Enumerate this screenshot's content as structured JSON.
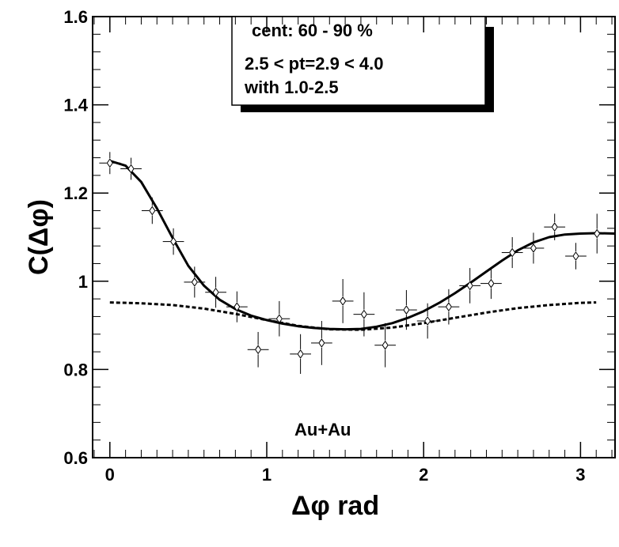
{
  "chart_data": {
    "type": "scatter",
    "title": "",
    "xlabel": "Δφ rad",
    "ylabel": "C(Δφ)",
    "xlim": [
      -0.11,
      3.22
    ],
    "ylim": [
      0.6,
      1.6
    ],
    "x_ticks": [
      "0",
      "1",
      "2",
      "3"
    ],
    "y_ticks": [
      "0.6",
      "0.8",
      "1",
      "1.2",
      "1.4",
      "1.6"
    ],
    "grid": false,
    "annotations": {
      "line1": "cent:  60 - 90 %",
      "line2": "2.5 < pt=2.9 < 4.0",
      "line3": "with 1.0-2.5",
      "system": "Au+Au"
    },
    "series": [
      {
        "style": "diamond-markers-with-error-bars",
        "x": [
          0.0,
          0.135,
          0.27,
          0.405,
          0.54,
          0.675,
          0.81,
          0.945,
          1.08,
          1.215,
          1.35,
          1.485,
          1.62,
          1.755,
          1.89,
          2.025,
          2.16,
          2.295,
          2.43,
          2.565,
          2.7,
          2.835,
          2.97,
          3.105
        ],
        "y": [
          1.268,
          1.255,
          1.16,
          1.09,
          0.998,
          0.975,
          0.942,
          0.845,
          0.915,
          0.835,
          0.86,
          0.955,
          0.925,
          0.855,
          0.935,
          0.91,
          0.942,
          0.99,
          0.995,
          1.065,
          1.075,
          1.123,
          1.057,
          1.108
        ],
        "yerr": [
          0.025,
          0.025,
          0.03,
          0.03,
          0.035,
          0.035,
          0.035,
          0.04,
          0.04,
          0.045,
          0.05,
          0.05,
          0.05,
          0.05,
          0.045,
          0.04,
          0.04,
          0.04,
          0.035,
          0.035,
          0.035,
          0.03,
          0.03,
          0.045
        ]
      },
      {
        "style": "solid-line",
        "x": [
          0.0,
          0.1,
          0.2,
          0.3,
          0.4,
          0.5,
          0.6,
          0.7,
          0.8,
          0.9,
          1.0,
          1.1,
          1.2,
          1.3,
          1.4,
          1.5,
          1.6,
          1.7,
          1.8,
          1.9,
          2.0,
          2.1,
          2.2,
          2.3,
          2.4,
          2.5,
          2.6,
          2.7,
          2.8,
          2.9,
          3.0,
          3.1,
          3.22
        ],
        "y": [
          1.273,
          1.262,
          1.225,
          1.165,
          1.098,
          1.035,
          0.99,
          0.958,
          0.937,
          0.922,
          0.912,
          0.904,
          0.898,
          0.894,
          0.892,
          0.891,
          0.892,
          0.897,
          0.905,
          0.917,
          0.932,
          0.951,
          0.973,
          0.997,
          1.022,
          1.047,
          1.07,
          1.088,
          1.1,
          1.106,
          1.108,
          1.109,
          1.108
        ]
      },
      {
        "style": "dashed-line",
        "x": [
          0.0,
          0.2,
          0.4,
          0.6,
          0.8,
          1.0,
          1.2,
          1.4,
          1.6,
          1.8,
          2.0,
          2.2,
          2.4,
          2.6,
          2.8,
          3.0,
          3.1
        ],
        "y": [
          0.952,
          0.95,
          0.946,
          0.938,
          0.926,
          0.912,
          0.899,
          0.891,
          0.89,
          0.895,
          0.905,
          0.917,
          0.929,
          0.939,
          0.946,
          0.951,
          0.952
        ]
      }
    ]
  }
}
